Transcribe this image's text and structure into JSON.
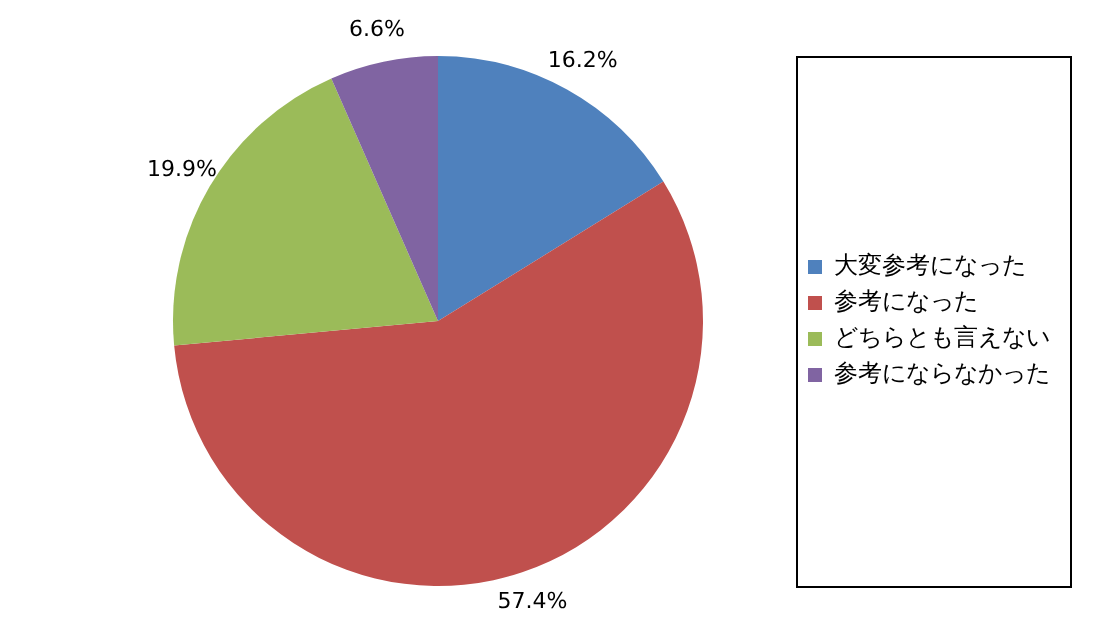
{
  "chart_data": {
    "type": "pie",
    "categories": [
      "大変参考になった",
      "参考になった",
      "どちらとも言えない",
      "参考にならなかった"
    ],
    "values": [
      16.2,
      57.4,
      19.9,
      6.6
    ],
    "colors": [
      "#4f81bd",
      "#c0504d",
      "#9bbb59",
      "#8064a2"
    ],
    "value_labels": [
      "16.2%",
      "57.4%",
      "19.9%",
      "6.6%"
    ],
    "legend": "right"
  }
}
